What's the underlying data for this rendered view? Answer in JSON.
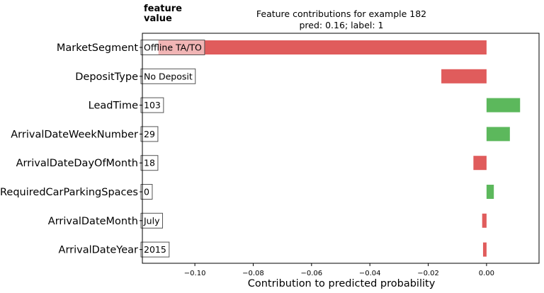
{
  "chart_data": {
    "type": "bar",
    "orientation": "horizontal",
    "title": "Feature contributions for example 182",
    "subtitle": "pred: 0.16; label: 1",
    "value_column_title": [
      "feature",
      "value"
    ],
    "xlabel": "Contribution to predicted probability",
    "ylabel": "",
    "xlim": [
      -0.118,
      0.018
    ],
    "xticks": [
      -0.1,
      -0.08,
      -0.06,
      -0.04,
      -0.02,
      0.0
    ],
    "xtick_labels": [
      "−0.10",
      "−0.08",
      "−0.06",
      "−0.04",
      "−0.02",
      "0.00"
    ],
    "categories": [
      "MarketSegment",
      "DepositType",
      "LeadTime",
      "ArrivalDateWeekNumber",
      "ArrivalDateDayOfMonth",
      "RequiredCarParkingSpaces",
      "ArrivalDateMonth",
      "ArrivalDateYear"
    ],
    "feature_values": [
      "Offline TA/TO",
      "No Deposit",
      "103",
      "29",
      "18",
      "0",
      "July",
      "2015"
    ],
    "values": [
      -0.1125,
      -0.0155,
      0.0115,
      0.008,
      -0.0045,
      0.0025,
      -0.0015,
      -0.0012
    ],
    "colors": {
      "positive": "#5cb85c",
      "negative": "#e05c5c"
    },
    "grid": false,
    "legend": "none"
  }
}
